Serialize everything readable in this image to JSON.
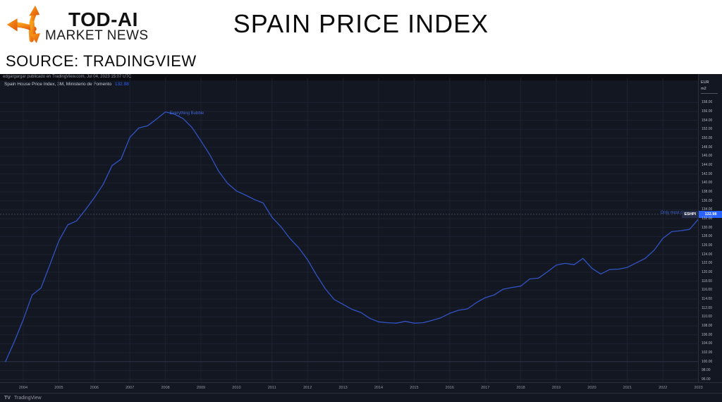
{
  "header": {
    "brand_title": "TOD-AI",
    "brand_subtitle": "MARKET NEWS",
    "page_title": "SPAIN PRICE INDEX",
    "source_line": "SOURCE: TRADINGVIEW"
  },
  "chart_header": {
    "publication_line": "edgargargar publicado en TradingView.com, Jul 04, 2023 15:07 UTC",
    "legend_label": "Spain House Price Index, 3M, Ministerio de Fomento",
    "legend_value": "132.98"
  },
  "symbol_label": {
    "ticker": "ESHPI",
    "value": "132.98"
  },
  "price_scale": {
    "unit_top": "EUR",
    "unit_bottom": "m2",
    "last_price": "132.98",
    "ticks": [
      "158.00",
      "156.00",
      "154.00",
      "152.00",
      "150.00",
      "148.00",
      "146.00",
      "144.00",
      "142.00",
      "140.00",
      "138.00",
      "136.00",
      "134.00",
      "132.00",
      "130.00",
      "128.00",
      "126.00",
      "124.00",
      "122.00",
      "120.00",
      "118.00",
      "116.00",
      "114.00",
      "112.00",
      "110.00",
      "108.00",
      "106.00",
      "104.00",
      "102.00",
      "100.00",
      "98.00",
      "96.00"
    ]
  },
  "x_axis": {
    "years": [
      "2004",
      "2005",
      "2006",
      "2007",
      "2008",
      "2009",
      "2010",
      "2011",
      "2012",
      "2013",
      "2014",
      "2015",
      "2016",
      "2017",
      "2018",
      "2019",
      "2020",
      "2021",
      "2022",
      "2023"
    ]
  },
  "footer": {
    "logo_glyph": "TV",
    "logo_text": "TradingView"
  },
  "colors": {
    "chart_bg": "#131722",
    "line_blue": "#3253c4",
    "accent_blue": "#2962ff",
    "annotation_blue": "#4266d8",
    "grid": "#1c2230",
    "axis_text": "#b2b5be",
    "logo_orange_light": "#f9a11b",
    "logo_orange_dark": "#e1560a"
  },
  "chart_data": {
    "type": "line",
    "title": "Spain House Price Index, 3M, Ministerio de Fomento",
    "units": "EUR/m2",
    "last_value": 132.98,
    "ylim": [
      96,
      160
    ],
    "xlim": [
      2003.35,
      2023.35
    ],
    "grid": true,
    "x": [
      2003.5,
      2003.75,
      2004,
      2004.25,
      2004.5,
      2004.75,
      2005,
      2005.25,
      2005.5,
      2005.75,
      2006,
      2006.25,
      2006.5,
      2006.75,
      2007,
      2007.25,
      2007.5,
      2007.75,
      2008,
      2008.25,
      2008.5,
      2008.75,
      2009,
      2009.25,
      2009.5,
      2009.75,
      2010,
      2010.25,
      2010.5,
      2010.75,
      2011,
      2011.25,
      2011.5,
      2011.75,
      2012,
      2012.25,
      2012.5,
      2012.75,
      2013,
      2013.25,
      2013.5,
      2013.75,
      2014,
      2014.25,
      2014.5,
      2014.75,
      2015,
      2015.25,
      2015.5,
      2015.75,
      2016,
      2016.25,
      2016.5,
      2016.75,
      2017,
      2017.25,
      2017.5,
      2017.75,
      2018,
      2018.25,
      2018.5,
      2018.75,
      2019,
      2019.25,
      2019.5,
      2019.75,
      2020,
      2020.25,
      2020.5,
      2020.75,
      2021,
      2021.25,
      2021.5,
      2021.75,
      2022,
      2022.25,
      2022.5,
      2022.75,
      2023,
      2023.1
    ],
    "values": [
      100.0,
      104.5,
      109.4,
      114.9,
      116.5,
      121.7,
      127.0,
      130.6,
      131.5,
      134.0,
      136.7,
      139.7,
      143.9,
      145.3,
      150.2,
      152.3,
      152.8,
      154.3,
      155.9,
      155.4,
      154.4,
      152.4,
      149.4,
      146.3,
      142.6,
      139.9,
      138.2,
      137.3,
      136.3,
      135.5,
      132.3,
      130.2,
      127.6,
      125.5,
      122.8,
      119.4,
      116.3,
      113.9,
      112.8,
      111.7,
      111.0,
      109.7,
      108.9,
      108.7,
      108.6,
      109.0,
      108.6,
      108.7,
      109.2,
      109.8,
      110.8,
      111.5,
      111.8,
      113.2,
      114.3,
      114.9,
      116.2,
      116.6,
      116.9,
      118.5,
      118.7,
      120.1,
      121.6,
      122.0,
      121.7,
      123.1,
      120.9,
      119.6,
      120.6,
      120.7,
      121.1,
      122.1,
      123.1,
      124.9,
      127.6,
      129.1,
      129.3,
      129.6,
      131.9,
      132.98
    ],
    "annotations": [
      {
        "text": "Everything Bubble",
        "x": 2008.12,
        "y": 155.6,
        "align": "left"
      },
      {
        "text": "Only most dem",
        "x": 2022.73,
        "y": 133.3,
        "align": "right"
      }
    ]
  }
}
